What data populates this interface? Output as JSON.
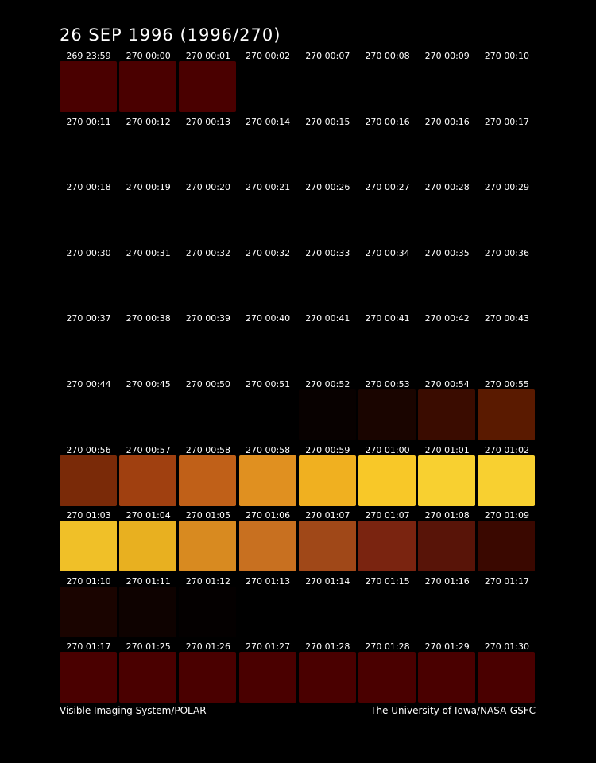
{
  "header": {
    "title": "26 SEP 1996  (1996/270)"
  },
  "rows": [
    {
      "cells": [
        {
          "label": "269 23:59",
          "color": "#4a0000"
        },
        {
          "label": "270 00:00",
          "color": "#4a0000"
        },
        {
          "label": "270 00:01",
          "color": "#4a0000"
        },
        {
          "label": "270 00:02",
          "color": "#000000"
        },
        {
          "label": "270 00:07",
          "color": "#000000"
        },
        {
          "label": "270 00:08",
          "color": "#000000"
        },
        {
          "label": "270 00:09",
          "color": "#000000"
        },
        {
          "label": "270 00:10",
          "color": "#000000"
        }
      ]
    },
    {
      "cells": [
        {
          "label": "270 00:11",
          "color": "#000000"
        },
        {
          "label": "270 00:12",
          "color": "#000000"
        },
        {
          "label": "270 00:13",
          "color": "#000000"
        },
        {
          "label": "270 00:14",
          "color": "#000000"
        },
        {
          "label": "270 00:15",
          "color": "#000000"
        },
        {
          "label": "270 00:16",
          "color": "#000000"
        },
        {
          "label": "270 00:16",
          "color": "#000000"
        },
        {
          "label": "270 00:17",
          "color": "#000000"
        }
      ]
    },
    {
      "cells": [
        {
          "label": "270 00:18",
          "color": "#000000"
        },
        {
          "label": "270 00:19",
          "color": "#000000"
        },
        {
          "label": "270 00:20",
          "color": "#000000"
        },
        {
          "label": "270 00:21",
          "color": "#000000"
        },
        {
          "label": "270 00:26",
          "color": "#000000"
        },
        {
          "label": "270 00:27",
          "color": "#000000"
        },
        {
          "label": "270 00:28",
          "color": "#000000"
        },
        {
          "label": "270 00:29",
          "color": "#000000"
        }
      ]
    },
    {
      "cells": [
        {
          "label": "270 00:30",
          "color": "#000000"
        },
        {
          "label": "270 00:31",
          "color": "#000000"
        },
        {
          "label": "270 00:32",
          "color": "#000000"
        },
        {
          "label": "270 00:32",
          "color": "#000000"
        },
        {
          "label": "270 00:33",
          "color": "#000000"
        },
        {
          "label": "270 00:34",
          "color": "#000000"
        },
        {
          "label": "270 00:35",
          "color": "#000000"
        },
        {
          "label": "270 00:36",
          "color": "#000000"
        }
      ]
    },
    {
      "cells": [
        {
          "label": "270 00:37",
          "color": "#000000"
        },
        {
          "label": "270 00:38",
          "color": "#000000"
        },
        {
          "label": "270 00:39",
          "color": "#000000"
        },
        {
          "label": "270 00:40",
          "color": "#000000"
        },
        {
          "label": "270 00:41",
          "color": "#000000"
        },
        {
          "label": "270 00:41",
          "color": "#000000"
        },
        {
          "label": "270 00:42",
          "color": "#000000"
        },
        {
          "label": "270 00:43",
          "color": "#000000"
        }
      ]
    },
    {
      "cells": [
        {
          "label": "270 00:44",
          "color": "#000000"
        },
        {
          "label": "270 00:45",
          "color": "#000000"
        },
        {
          "label": "270 00:50",
          "color": "#000000"
        },
        {
          "label": "270 00:51",
          "color": "#000000"
        },
        {
          "label": "270 00:52",
          "color": "#080100"
        },
        {
          "label": "270 00:53",
          "color": "#1a0500"
        },
        {
          "label": "270 00:54",
          "color": "#3a0c00"
        },
        {
          "label": "270 00:55",
          "color": "#5a1a00"
        }
      ]
    },
    {
      "cells": [
        {
          "label": "270 00:56",
          "color": "#7a2a08"
        },
        {
          "label": "270 00:57",
          "color": "#a04010"
        },
        {
          "label": "270 00:58",
          "color": "#c06018"
        },
        {
          "label": "270 00:58",
          "color": "#e09020"
        },
        {
          "label": "270 00:59",
          "color": "#f0b020"
        },
        {
          "label": "270 01:00",
          "color": "#f8c828"
        },
        {
          "label": "270 01:01",
          "color": "#f8d030"
        },
        {
          "label": "270 01:02",
          "color": "#f8d030"
        }
      ]
    },
    {
      "cells": [
        {
          "label": "270 01:03",
          "color": "#f0c028"
        },
        {
          "label": "270 01:04",
          "color": "#e8b020"
        },
        {
          "label": "270 01:05",
          "color": "#d88a20"
        },
        {
          "label": "270 01:06",
          "color": "#c87020"
        },
        {
          "label": "270 01:07",
          "color": "#a04818"
        },
        {
          "label": "270 01:07",
          "color": "#7a2410"
        },
        {
          "label": "270 01:08",
          "color": "#581408"
        },
        {
          "label": "270 01:09",
          "color": "#3a0800"
        }
      ]
    },
    {
      "cells": [
        {
          "label": "270 01:10",
          "color": "#1a0400"
        },
        {
          "label": "270 01:11",
          "color": "#0e0200"
        },
        {
          "label": "270 01:12",
          "color": "#040000"
        },
        {
          "label": "270 01:13",
          "color": "#000000"
        },
        {
          "label": "270 01:14",
          "color": "#000000"
        },
        {
          "label": "270 01:15",
          "color": "#000000"
        },
        {
          "label": "270 01:16",
          "color": "#000000"
        },
        {
          "label": "270 01:17",
          "color": "#000000"
        }
      ]
    },
    {
      "cells": [
        {
          "label": "270 01:17",
          "color": "#4a0000"
        },
        {
          "label": "270 01:25",
          "color": "#4a0000"
        },
        {
          "label": "270 01:26",
          "color": "#4a0000"
        },
        {
          "label": "270 01:27",
          "color": "#4a0000"
        },
        {
          "label": "270 01:28",
          "color": "#4a0000"
        },
        {
          "label": "270 01:28",
          "color": "#4a0000"
        },
        {
          "label": "270 01:29",
          "color": "#4a0000"
        },
        {
          "label": "270 01:30",
          "color": "#4a0000"
        }
      ]
    }
  ],
  "footer": {
    "left": "Visible Imaging System/POLAR",
    "right": "The University of Iowa/NASA-GSFC"
  }
}
